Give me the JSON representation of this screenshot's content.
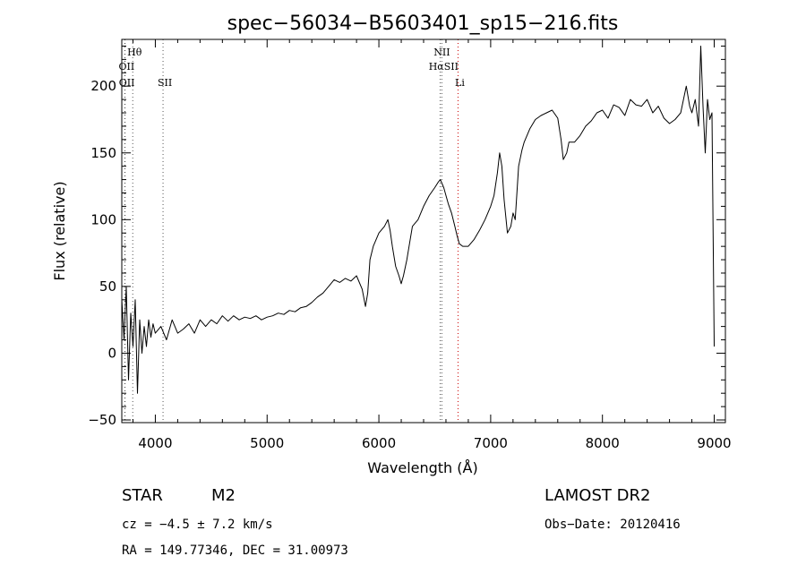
{
  "chart_data": {
    "type": "line",
    "title": "spec−56034−B5603401_sp15−216.fits",
    "xlabel": "Wavelength (Å)",
    "ylabel": "Flux (relative)",
    "xlim": [
      3700,
      9100
    ],
    "ylim": [
      -52,
      235
    ],
    "xticks": [
      4000,
      5000,
      6000,
      7000,
      8000,
      9000
    ],
    "yticks": [
      -50,
      0,
      50,
      100,
      150,
      200
    ],
    "grid": false,
    "series": [
      {
        "values_note": "",
        "points": [
          [
            3700,
            40
          ],
          [
            3720,
            10
          ],
          [
            3740,
            50
          ],
          [
            3760,
            -20
          ],
          [
            3780,
            30
          ],
          [
            3800,
            5
          ],
          [
            3820,
            40
          ],
          [
            3840,
            -30
          ],
          [
            3860,
            25
          ],
          [
            3880,
            0
          ],
          [
            3900,
            20
          ],
          [
            3920,
            5
          ],
          [
            3940,
            25
          ],
          [
            3960,
            12
          ],
          [
            3980,
            22
          ],
          [
            4000,
            15
          ],
          [
            4050,
            20
          ],
          [
            4100,
            10
          ],
          [
            4150,
            25
          ],
          [
            4200,
            15
          ],
          [
            4250,
            18
          ],
          [
            4300,
            22
          ],
          [
            4350,
            15
          ],
          [
            4400,
            25
          ],
          [
            4450,
            20
          ],
          [
            4500,
            25
          ],
          [
            4550,
            22
          ],
          [
            4600,
            28
          ],
          [
            4650,
            24
          ],
          [
            4700,
            28
          ],
          [
            4750,
            25
          ],
          [
            4800,
            27
          ],
          [
            4850,
            26
          ],
          [
            4900,
            28
          ],
          [
            4950,
            25
          ],
          [
            5000,
            27
          ],
          [
            5050,
            28
          ],
          [
            5100,
            30
          ],
          [
            5150,
            29
          ],
          [
            5200,
            32
          ],
          [
            5250,
            31
          ],
          [
            5300,
            34
          ],
          [
            5350,
            35
          ],
          [
            5400,
            38
          ],
          [
            5450,
            42
          ],
          [
            5500,
            45
          ],
          [
            5550,
            50
          ],
          [
            5600,
            55
          ],
          [
            5650,
            53
          ],
          [
            5700,
            56
          ],
          [
            5750,
            54
          ],
          [
            5800,
            58
          ],
          [
            5850,
            48
          ],
          [
            5880,
            35
          ],
          [
            5900,
            45
          ],
          [
            5920,
            70
          ],
          [
            5950,
            80
          ],
          [
            6000,
            90
          ],
          [
            6050,
            95
          ],
          [
            6080,
            100
          ],
          [
            6100,
            92
          ],
          [
            6120,
            80
          ],
          [
            6150,
            65
          ],
          [
            6180,
            58
          ],
          [
            6200,
            52
          ],
          [
            6220,
            58
          ],
          [
            6250,
            70
          ],
          [
            6280,
            85
          ],
          [
            6300,
            95
          ],
          [
            6350,
            100
          ],
          [
            6400,
            110
          ],
          [
            6450,
            118
          ],
          [
            6500,
            124
          ],
          [
            6530,
            128
          ],
          [
            6550,
            130
          ],
          [
            6580,
            124
          ],
          [
            6600,
            118
          ],
          [
            6620,
            112
          ],
          [
            6650,
            105
          ],
          [
            6680,
            95
          ],
          [
            6700,
            88
          ],
          [
            6720,
            82
          ],
          [
            6750,
            80
          ],
          [
            6800,
            80
          ],
          [
            6850,
            85
          ],
          [
            6900,
            92
          ],
          [
            6950,
            100
          ],
          [
            7000,
            110
          ],
          [
            7030,
            118
          ],
          [
            7060,
            135
          ],
          [
            7080,
            150
          ],
          [
            7100,
            140
          ],
          [
            7120,
            115
          ],
          [
            7150,
            90
          ],
          [
            7180,
            95
          ],
          [
            7200,
            105
          ],
          [
            7220,
            100
          ],
          [
            7250,
            140
          ],
          [
            7280,
            152
          ],
          [
            7300,
            158
          ],
          [
            7350,
            168
          ],
          [
            7400,
            175
          ],
          [
            7450,
            178
          ],
          [
            7500,
            180
          ],
          [
            7550,
            182
          ],
          [
            7600,
            176
          ],
          [
            7630,
            160
          ],
          [
            7650,
            145
          ],
          [
            7680,
            150
          ],
          [
            7700,
            158
          ],
          [
            7750,
            158
          ],
          [
            7800,
            163
          ],
          [
            7850,
            170
          ],
          [
            7900,
            174
          ],
          [
            7950,
            180
          ],
          [
            8000,
            182
          ],
          [
            8050,
            176
          ],
          [
            8100,
            186
          ],
          [
            8150,
            184
          ],
          [
            8200,
            178
          ],
          [
            8250,
            190
          ],
          [
            8300,
            186
          ],
          [
            8350,
            185
          ],
          [
            8400,
            190
          ],
          [
            8450,
            180
          ],
          [
            8500,
            185
          ],
          [
            8550,
            176
          ],
          [
            8600,
            172
          ],
          [
            8650,
            175
          ],
          [
            8700,
            180
          ],
          [
            8750,
            200
          ],
          [
            8780,
            185
          ],
          [
            8800,
            180
          ],
          [
            8830,
            190
          ],
          [
            8860,
            170
          ],
          [
            8880,
            230
          ],
          [
            8900,
            185
          ],
          [
            8920,
            150
          ],
          [
            8940,
            190
          ],
          [
            8960,
            175
          ],
          [
            8980,
            180
          ],
          [
            9000,
            5
          ]
        ]
      }
    ],
    "line_markers": [
      {
        "label": "Hθ",
        "wavelength": 3798,
        "color": "#555555",
        "row": 0
      },
      {
        "label": "OII",
        "wavelength": 3727,
        "color": "#555555",
        "row": 1
      },
      {
        "label": "OII",
        "wavelength": 3729,
        "color": "#555555",
        "row": 2
      },
      {
        "label": "SII",
        "wavelength": 4069,
        "color": "#555555",
        "row": 2
      },
      {
        "label": "NII",
        "wavelength": 6548,
        "color": "#555555",
        "row": 0
      },
      {
        "label": "HαSII",
        "wavelength": 6563,
        "color": "#555555",
        "row": 1
      },
      {
        "label": "Li",
        "wavelength": 6708,
        "color": "#cc0000",
        "row": 2
      }
    ]
  },
  "info": {
    "object_type": "STAR",
    "subclass": "M2",
    "survey": "LAMOST DR2",
    "redshift": "cz = −4.5 ± 7.2 km/s",
    "obs_date": "Obs−Date: 20120416",
    "coords": "RA = 149.77346, DEC =  31.00973"
  }
}
